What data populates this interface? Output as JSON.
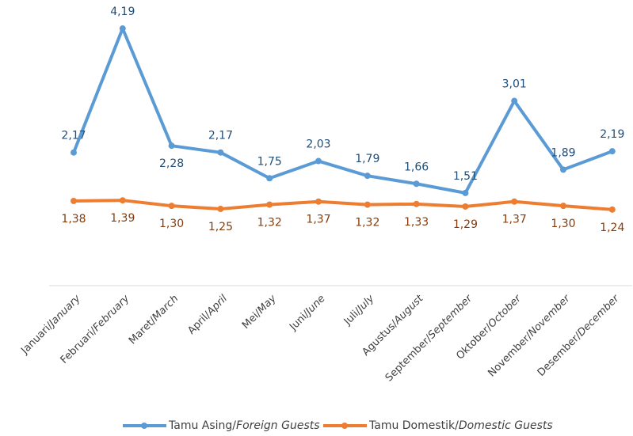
{
  "chart_data": {
    "type": "line",
    "categories": [
      "Januari/January",
      "Februari/February",
      "Maret/March",
      "April/April",
      "Mei/May",
      "Juni/June",
      "Juli/July",
      "Agustus/August",
      "September/September",
      "Oktober/October",
      "November/November",
      "Desember/December"
    ],
    "series": [
      {
        "name": "Tamu Asing/Foreign Guests",
        "color": "#5b9bd5",
        "label_color": "#1f4e79",
        "values": [
          2.17,
          4.19,
          2.28,
          2.17,
          1.75,
          2.03,
          1.79,
          1.66,
          1.51,
          3.01,
          1.89,
          2.19
        ],
        "value_labels": [
          "2,17",
          "4,19",
          "2,28",
          "2,17",
          "1,75",
          "2,03",
          "1,79",
          "1,66",
          "1,51",
          "3,01",
          "1,89",
          "2,19"
        ]
      },
      {
        "name": "Tamu Domestik/Domestic Guests",
        "color": "#ed7d31",
        "label_color": "#843c0c",
        "values": [
          1.38,
          1.39,
          1.3,
          1.25,
          1.32,
          1.37,
          1.32,
          1.33,
          1.29,
          1.37,
          1.3,
          1.24
        ],
        "value_labels": [
          "1,38",
          "1,39",
          "1,30",
          "1,25",
          "1,32",
          "1,37",
          "1,32",
          "1,33",
          "1,29",
          "1,37",
          "1,30",
          "1,24"
        ]
      }
    ],
    "ylim": [
      0,
      4.5
    ]
  }
}
